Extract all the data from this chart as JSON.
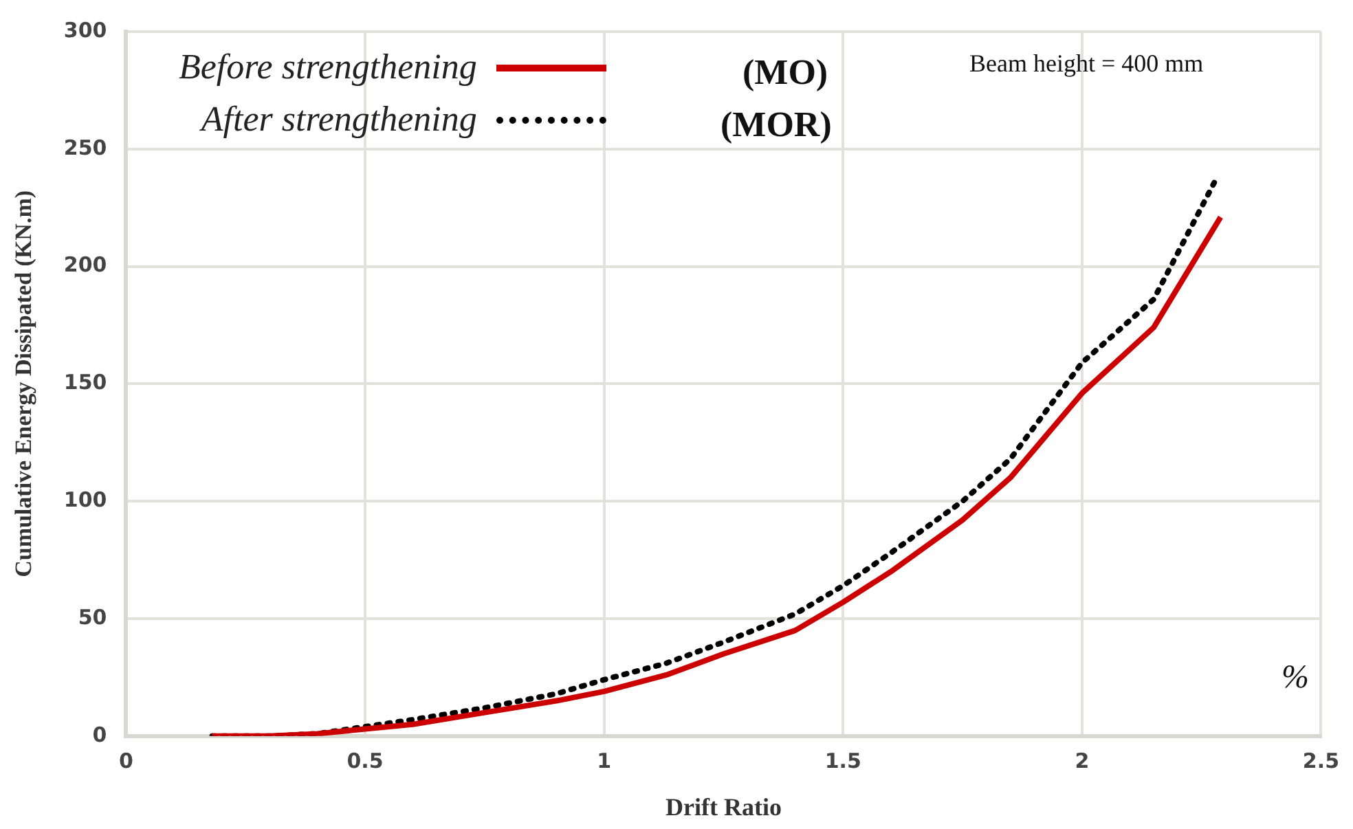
{
  "chart_data": {
    "type": "line",
    "xlabel": "Drift Ratio",
    "ylabel": "Cumulative Energy Dissipated (KN.m)",
    "xlim": [
      0,
      2.5
    ],
    "ylim": [
      0,
      300
    ],
    "xticks": [
      0,
      0.5,
      1,
      1.5,
      2,
      2.5
    ],
    "yticks": [
      0,
      50,
      100,
      150,
      200,
      250,
      300
    ],
    "grid": true,
    "legend": "top left",
    "marker": "none",
    "series": [
      {
        "name": "Before strengthening",
        "color": "#cc0000",
        "line_style": "solid",
        "x": [
          0.18,
          0.3,
          0.4,
          0.5,
          0.6,
          0.75,
          0.9,
          1.0,
          1.13,
          1.25,
          1.4,
          1.5,
          1.6,
          1.75,
          1.85,
          2.0,
          2.15,
          2.29
        ],
        "values": [
          0,
          0,
          1,
          3,
          5,
          10,
          15,
          19,
          26,
          35,
          45,
          57,
          70,
          92,
          110,
          146,
          174,
          221
        ]
      },
      {
        "name": "After strengthening",
        "color": "#000000",
        "line_style": "dotted",
        "x": [
          0.18,
          0.3,
          0.4,
          0.5,
          0.6,
          0.75,
          0.9,
          1.0,
          1.13,
          1.25,
          1.4,
          1.5,
          1.6,
          1.75,
          1.85,
          2.0,
          2.15,
          2.28
        ],
        "values": [
          0,
          0,
          1,
          4,
          7,
          12,
          18,
          24,
          31,
          40,
          52,
          64,
          78,
          100,
          118,
          159,
          186,
          237
        ]
      }
    ],
    "annotations": [
      "(MO)",
      "(MOR)",
      "Beam height = 400 mm",
      "%"
    ]
  }
}
